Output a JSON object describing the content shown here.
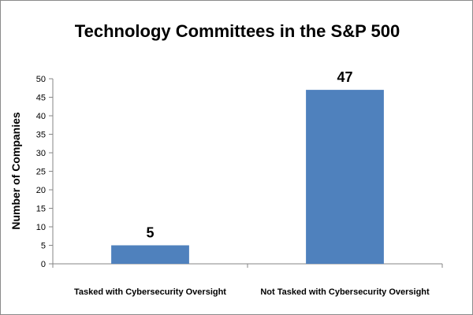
{
  "chart_data": {
    "type": "bar",
    "title": "Technology Committees in the S&P 500",
    "xlabel": "",
    "ylabel": "Number of Companies",
    "categories": [
      "Tasked with Cybersecurity Oversight",
      "Not Tasked with Cybersecurity Oversight"
    ],
    "values": [
      5,
      47
    ],
    "data_labels": [
      "5",
      "47"
    ],
    "ylim": [
      0,
      50
    ],
    "yticks": [
      0,
      5,
      10,
      15,
      20,
      25,
      30,
      35,
      40,
      45,
      50
    ],
    "ytick_labels": [
      "0",
      "5",
      "10",
      "15",
      "20",
      "25",
      "30",
      "35",
      "40",
      "45",
      "50"
    ],
    "grid": false,
    "legend": "none",
    "bar_color": "#4f81bd",
    "axis_color": "#868686"
  }
}
